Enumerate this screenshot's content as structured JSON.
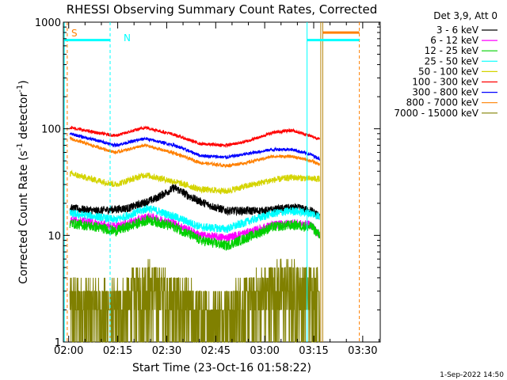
{
  "chart_data": {
    "type": "line",
    "title": "RHESSI Observing Summary Count Rates, Corrected",
    "xlabel": "Start Time (23-Oct-16 01:58:22)",
    "ylabel_main": "Corrected Count Rate (s",
    "ylabel_exp1": "-1",
    "ylabel_mid": " detector",
    "ylabel_exp2": "-1",
    "ylabel_end": ")",
    "y_scale": "log",
    "xlim_minutes": [
      0,
      97
    ],
    "ylim": [
      1,
      1000
    ],
    "x_ticks": [
      {
        "min": 1.63,
        "label": "02:00"
      },
      {
        "min": 16.63,
        "label": "02:15"
      },
      {
        "min": 31.63,
        "label": "02:30"
      },
      {
        "min": 46.63,
        "label": "02:45"
      },
      {
        "min": 61.63,
        "label": "03:00"
      },
      {
        "min": 76.63,
        "label": "03:15"
      },
      {
        "min": 91.63,
        "label": "03:30"
      }
    ],
    "y_ticks": [
      {
        "value": 1,
        "label": "1"
      },
      {
        "value": 10,
        "label": "10"
      },
      {
        "value": 100,
        "label": "100"
      },
      {
        "value": 1000,
        "label": "1000"
      }
    ],
    "legend_title": "Det 3,9, Att 0",
    "footer": "1-Sep-2022 14:50",
    "x_start": 2.0,
    "x_end": 78.5,
    "series": [
      {
        "name": "3 - 6 keV",
        "color": "#000000",
        "points": [
          [
            2,
            18
          ],
          [
            10,
            17
          ],
          [
            20,
            18
          ],
          [
            28,
            22
          ],
          [
            34,
            28
          ],
          [
            40,
            22
          ],
          [
            45,
            19
          ],
          [
            50,
            17
          ],
          [
            56,
            17
          ],
          [
            62,
            17
          ],
          [
            68,
            18
          ],
          [
            72,
            18
          ],
          [
            76,
            17
          ],
          [
            78.5,
            15
          ]
        ],
        "noise": 0.09
      },
      {
        "name": "6 - 12 keV",
        "color": "#ff00ff",
        "points": [
          [
            2,
            14
          ],
          [
            10,
            13
          ],
          [
            16,
            12
          ],
          [
            26,
            15
          ],
          [
            34,
            13
          ],
          [
            42,
            10
          ],
          [
            50,
            9.5
          ],
          [
            58,
            11
          ],
          [
            64,
            12.5
          ],
          [
            70,
            13
          ],
          [
            76,
            12.5
          ],
          [
            78.5,
            10
          ]
        ],
        "noise": 0.09
      },
      {
        "name": "12 - 25 keV",
        "color": "#00d000",
        "points": [
          [
            2,
            13
          ],
          [
            10,
            12
          ],
          [
            16,
            11
          ],
          [
            26,
            14
          ],
          [
            34,
            12
          ],
          [
            42,
            9
          ],
          [
            50,
            8
          ],
          [
            58,
            10
          ],
          [
            64,
            12
          ],
          [
            70,
            12.5
          ],
          [
            76,
            12
          ],
          [
            78.5,
            10
          ]
        ],
        "noise": 0.11
      },
      {
        "name": "25 - 50 keV",
        "color": "#00ffff",
        "points": [
          [
            2,
            16
          ],
          [
            10,
            15
          ],
          [
            16,
            14
          ],
          [
            26,
            18
          ],
          [
            34,
            15
          ],
          [
            42,
            12
          ],
          [
            50,
            11.5
          ],
          [
            58,
            14
          ],
          [
            64,
            16
          ],
          [
            70,
            17
          ],
          [
            76,
            16
          ],
          [
            78.5,
            15
          ]
        ],
        "noise": 0.09
      },
      {
        "name": "50 - 100 keV",
        "color": "#d4d400",
        "points": [
          [
            2,
            38
          ],
          [
            10,
            33
          ],
          [
            16,
            30
          ],
          [
            25,
            37
          ],
          [
            34,
            32
          ],
          [
            42,
            27
          ],
          [
            50,
            26
          ],
          [
            56,
            29
          ],
          [
            64,
            33
          ],
          [
            70,
            35
          ],
          [
            76,
            34
          ],
          [
            78.5,
            34
          ]
        ],
        "noise": 0.07
      },
      {
        "name": "100 - 300 keV",
        "color": "#ff0000",
        "points": [
          [
            2,
            103
          ],
          [
            10,
            92
          ],
          [
            16,
            86
          ],
          [
            25,
            103
          ],
          [
            34,
            88
          ],
          [
            42,
            72
          ],
          [
            50,
            70
          ],
          [
            56,
            76
          ],
          [
            64,
            92
          ],
          [
            70,
            97
          ],
          [
            76,
            85
          ],
          [
            78.5,
            80
          ]
        ],
        "noise": 0.035
      },
      {
        "name": "300 - 800 keV",
        "color": "#0000ff",
        "points": [
          [
            2,
            90
          ],
          [
            10,
            78
          ],
          [
            16,
            70
          ],
          [
            25,
            81
          ],
          [
            34,
            70
          ],
          [
            42,
            56
          ],
          [
            50,
            54
          ],
          [
            56,
            58
          ],
          [
            64,
            64
          ],
          [
            70,
            64
          ],
          [
            76,
            57
          ],
          [
            78.5,
            52
          ]
        ],
        "noise": 0.035
      },
      {
        "name": "800 - 7000 keV",
        "color": "#ff8000",
        "points": [
          [
            2,
            81
          ],
          [
            10,
            68
          ],
          [
            16,
            60
          ],
          [
            25,
            70
          ],
          [
            34,
            59
          ],
          [
            42,
            48
          ],
          [
            50,
            45
          ],
          [
            56,
            48
          ],
          [
            64,
            55
          ],
          [
            70,
            55
          ],
          [
            76,
            50
          ],
          [
            78.5,
            46
          ]
        ],
        "noise": 0.035
      },
      {
        "name": "7000 - 15000 keV",
        "color": "#808000",
        "points": [
          [
            2,
            2.3
          ],
          [
            16,
            2.0
          ],
          [
            26,
            3.3
          ],
          [
            36,
            2.2
          ],
          [
            46,
            1.6
          ],
          [
            56,
            2.3
          ],
          [
            66,
            3.3
          ],
          [
            78.5,
            3.0
          ]
        ],
        "noise": 0.35
      }
    ],
    "annotations": {
      "saa_label": "S",
      "night_label": "N",
      "saa_color": "#ff8000",
      "night_color": "#00ffff",
      "attenuator_color": "#b8860b",
      "vlines": [
        {
          "min": 0.3,
          "color": "#00ffff",
          "style": "solid"
        },
        {
          "min": 1.2,
          "color": "#ff8000",
          "style": "dashed"
        },
        {
          "min": 14.3,
          "color": "#00ffff",
          "style": "dashed"
        },
        {
          "min": 74.6,
          "color": "#00ffff",
          "style": "solid"
        },
        {
          "min": 78.8,
          "color": "#b8860b",
          "style": "solid"
        },
        {
          "min": 79.4,
          "color": "#b8860b",
          "style": "solid"
        },
        {
          "min": 90.6,
          "color": "#ff8000",
          "style": "dashed"
        }
      ],
      "hbars": [
        {
          "from": 0.3,
          "to": 14.3,
          "value": 680,
          "color": "#00ffff"
        },
        {
          "from": 74.6,
          "to": 90.6,
          "value": 680,
          "color": "#00ffff"
        },
        {
          "from": 79.4,
          "to": 90.6,
          "value": 800,
          "color": "#ff8000"
        }
      ]
    }
  }
}
